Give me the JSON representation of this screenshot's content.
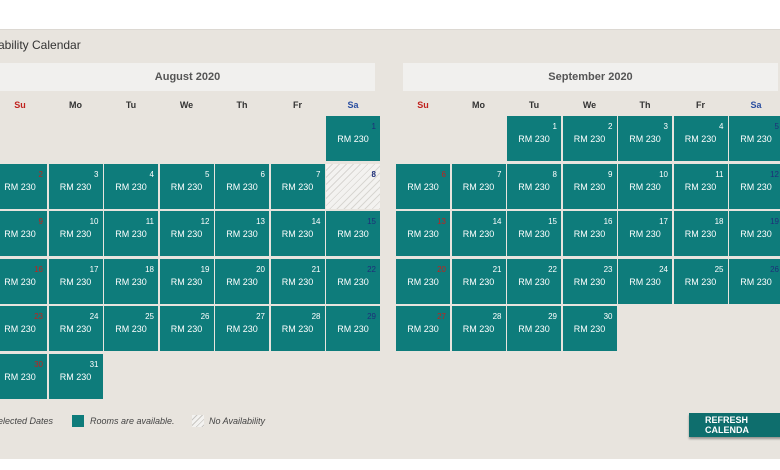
{
  "page": {
    "title": "ability Calendar",
    "refresh_label": "REFRESH CALENDA"
  },
  "calendars": [
    {
      "month": "August 2020",
      "weekdays": [
        "Su",
        "Mo",
        "Tu",
        "We",
        "Th",
        "Fr",
        "Sa"
      ],
      "first_weekday": 6,
      "days": 31,
      "price": "RM 230",
      "unavailable": [
        8
      ]
    },
    {
      "month": "September 2020",
      "weekdays": [
        "Su",
        "Mo",
        "Tu",
        "We",
        "Th",
        "Fr",
        "Sa"
      ],
      "first_weekday": 2,
      "days": 30,
      "price": "RM 230",
      "unavailable": []
    }
  ],
  "legend": {
    "selected": "elected Dates",
    "available": "Rooms are available.",
    "no_availability": "No Availability"
  },
  "colors": {
    "available": "#0e7c7b",
    "sunday": "#c0221e",
    "saturday": "#2a4ea0"
  }
}
